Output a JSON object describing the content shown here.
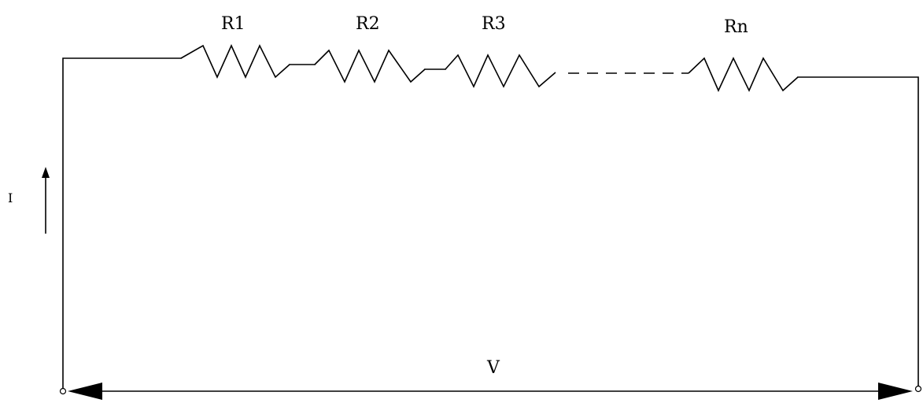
{
  "resistors": [
    {
      "label": "R1"
    },
    {
      "label": "R2"
    },
    {
      "label": "R3"
    },
    {
      "label": "Rn"
    }
  ],
  "current_label": "I",
  "voltage_label": "V",
  "colors": {
    "line": "#000000",
    "background": "#ffffff"
  }
}
